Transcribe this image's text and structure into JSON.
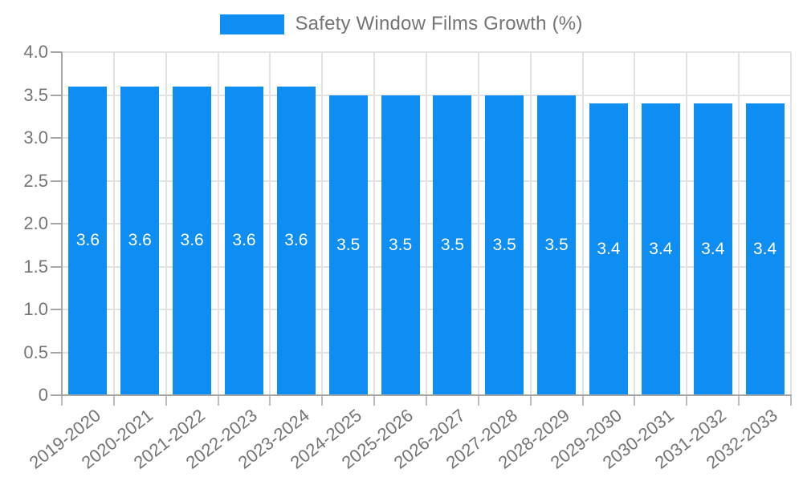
{
  "chart_data": {
    "type": "bar",
    "title": "Safety Window Films Growth (%)",
    "legend": {
      "position": "top",
      "label": "Safety Window Films Growth (%)"
    },
    "categories": [
      "2019-2020",
      "2020-2021",
      "2021-2022",
      "2022-2023",
      "2023-2024",
      "2024-2025",
      "2025-2026",
      "2026-2027",
      "2027-2028",
      "2028-2029",
      "2029-2030",
      "2030-2031",
      "2031-2032",
      "2032-2033"
    ],
    "values": [
      3.6,
      3.6,
      3.6,
      3.6,
      3.6,
      3.5,
      3.5,
      3.5,
      3.5,
      3.5,
      3.4,
      3.4,
      3.4,
      3.4
    ],
    "value_label_decimals": 1,
    "ylim": [
      0,
      4
    ],
    "y_tick_step": 0.5,
    "y_tick_labels": [
      "0",
      "0.5",
      "1.0",
      "1.5",
      "2.0",
      "2.5",
      "3.0",
      "3.5",
      "4.0"
    ],
    "grid": "on",
    "xlabel": "",
    "ylabel": "",
    "colors": {
      "bar": "#0e8df2",
      "bar_label": "#ffffff",
      "tick_text": "#757575",
      "grid": "#e2e2e2",
      "axis": "#a6a6a6",
      "minor_tick": "#bdbdbd"
    }
  }
}
